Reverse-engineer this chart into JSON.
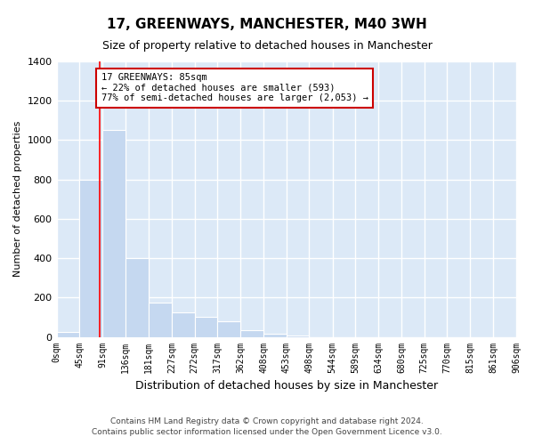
{
  "title": "17, GREENWAYS, MANCHESTER, M40 3WH",
  "subtitle": "Size of property relative to detached houses in Manchester",
  "xlabel": "Distribution of detached houses by size in Manchester",
  "ylabel": "Number of detached properties",
  "footer_line1": "Contains HM Land Registry data © Crown copyright and database right 2024.",
  "footer_line2": "Contains public sector information licensed under the Open Government Licence v3.0.",
  "annotation_line1": "17 GREENWAYS: 85sqm",
  "annotation_line2": "← 22% of detached houses are smaller (593)",
  "annotation_line3": "77% of semi-detached houses are larger (2,053) →",
  "property_size_sqm": 85,
  "bin_edges": [
    0,
    45,
    91,
    136,
    181,
    227,
    272,
    317,
    362,
    408,
    453,
    498,
    544,
    589,
    634,
    680,
    725,
    770,
    815,
    861,
    906
  ],
  "bar_heights": [
    25,
    800,
    1050,
    400,
    175,
    125,
    100,
    80,
    35,
    18,
    5,
    0,
    0,
    0,
    0,
    0,
    0,
    0,
    0,
    0
  ],
  "bar_color": "#c5d8f0",
  "bar_edge_color": "#ffffff",
  "red_line_x": 85,
  "annotation_box_facecolor": "#ffffff",
  "annotation_box_edgecolor": "#cc0000",
  "fig_facecolor": "#ffffff",
  "axes_facecolor": "#dce9f7",
  "grid_color": "#ffffff",
  "ylim": [
    0,
    1400
  ],
  "yticks": [
    0,
    200,
    400,
    600,
    800,
    1000,
    1200,
    1400
  ],
  "title_fontsize": 11,
  "subtitle_fontsize": 9,
  "ylabel_fontsize": 8,
  "xlabel_fontsize": 9,
  "tick_fontsize": 7,
  "footer_fontsize": 6.5,
  "annotation_fontsize": 7.5
}
